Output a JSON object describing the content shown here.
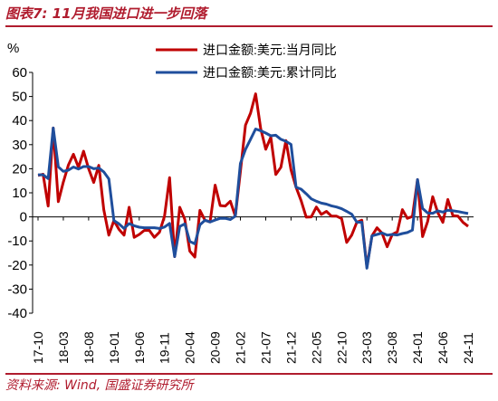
{
  "header": {
    "title": "图表7:  11月我国进口进一步回落"
  },
  "footer": {
    "source": "资料来源:  Wind, 国盛证券研究所"
  },
  "chart_data": {
    "type": "line",
    "y_unit": "%",
    "ylim": [
      -40,
      60
    ],
    "yticks": [
      60,
      50,
      40,
      30,
      20,
      10,
      0,
      -10,
      -20,
      -30,
      -40
    ],
    "x_tick_labels": [
      "17-10",
      "18-03",
      "18-08",
      "19-01",
      "19-06",
      "19-11",
      "20-04",
      "20-09",
      "21-02",
      "21-07",
      "21-12",
      "22-05",
      "22-10",
      "23-03",
      "23-08",
      "24-01",
      "24-06",
      "24-11"
    ],
    "x": [
      "17-10",
      "17-11",
      "17-12",
      "18-01",
      "18-02",
      "18-03",
      "18-04",
      "18-05",
      "18-06",
      "18-07",
      "18-08",
      "18-09",
      "18-10",
      "18-11",
      "18-12",
      "19-01",
      "19-02",
      "19-03",
      "19-04",
      "19-05",
      "19-06",
      "19-07",
      "19-08",
      "19-09",
      "19-10",
      "19-11",
      "19-12",
      "20-01",
      "20-02",
      "20-03",
      "20-04",
      "20-05",
      "20-06",
      "20-07",
      "20-08",
      "20-09",
      "20-10",
      "20-11",
      "20-12",
      "21-01",
      "21-02",
      "21-03",
      "21-04",
      "21-05",
      "21-06",
      "21-07",
      "21-08",
      "21-09",
      "21-10",
      "21-11",
      "21-12",
      "22-01",
      "22-02",
      "22-03",
      "22-04",
      "22-05",
      "22-06",
      "22-07",
      "22-08",
      "22-09",
      "22-10",
      "22-11",
      "22-12",
      "23-01",
      "23-02",
      "23-03",
      "23-04",
      "23-05",
      "23-06",
      "23-07",
      "23-08",
      "23-09",
      "23-10",
      "23-11",
      "23-12",
      "24-01",
      "24-02",
      "24-03",
      "24-04",
      "24-05",
      "24-06",
      "24-07",
      "24-08",
      "24-09",
      "24-10",
      "24-11"
    ],
    "series": [
      {
        "name": "进口金额:美元:当月同比",
        "color": "#c00000",
        "values": [
          17.2,
          17.7,
          4.5,
          36.9,
          6.3,
          14.4,
          21.5,
          26.0,
          20.6,
          27.3,
          20.0,
          14.3,
          21.4,
          3.0,
          -7.6,
          -1.5,
          -5.2,
          -7.6,
          4.0,
          -8.5,
          -7.3,
          -5.6,
          -5.6,
          -8.5,
          -6.4,
          0.3,
          16.3,
          -16.5,
          4.0,
          -1.0,
          -14.2,
          -16.7,
          2.7,
          -1.4,
          -2.1,
          13.2,
          4.7,
          4.5,
          6.5,
          0.3,
          18.8,
          38.1,
          43.1,
          51.1,
          36.7,
          28.1,
          33.1,
          17.6,
          20.6,
          31.7,
          19.5,
          12.3,
          6.7,
          -0.1,
          0.0,
          4.1,
          1.0,
          2.3,
          0.3,
          0.3,
          -0.7,
          -10.6,
          -7.5,
          -2.2,
          -1.4,
          -20.8,
          -7.9,
          -4.5,
          -6.8,
          -12.4,
          -7.3,
          -6.2,
          3.0,
          -0.6,
          0.2,
          15.5,
          -8.2,
          -1.9,
          8.4,
          1.8,
          -2.3,
          7.2,
          0.5,
          0.3,
          -2.3,
          -3.9
        ]
      },
      {
        "name": "进口金额:美元:累计同比",
        "color": "#1f4e9c",
        "values": [
          17.5,
          17.5,
          15.9,
          36.9,
          20.8,
          18.9,
          19.4,
          20.7,
          19.9,
          20.9,
          20.9,
          20.0,
          20.3,
          18.7,
          15.8,
          -1.5,
          -2.9,
          -4.8,
          -2.8,
          -3.7,
          -4.3,
          -4.5,
          -4.5,
          -4.5,
          -4.8,
          -4.2,
          -2.7,
          -16.5,
          -4.0,
          -2.9,
          -10.2,
          -11.2,
          -3.3,
          -1.4,
          -2.1,
          -1.3,
          -0.6,
          -0.6,
          -1.1,
          0.3,
          22.2,
          28.0,
          32.2,
          36.5,
          35.8,
          34.8,
          33.7,
          33.9,
          32.2,
          31.4,
          30.1,
          12.3,
          11.5,
          9.6,
          7.5,
          6.5,
          5.7,
          5.3,
          4.6,
          4.1,
          3.4,
          2.3,
          1.1,
          -2.2,
          -2.2,
          -21.3,
          -7.9,
          -7.3,
          -6.7,
          -7.6,
          -7.3,
          -7.5,
          -6.9,
          -6.5,
          -5.5,
          15.5,
          3.5,
          1.6,
          1.5,
          2.5,
          2.0,
          2.8,
          2.5,
          2.2,
          1.8,
          1.4
        ]
      }
    ],
    "legend_position": "top"
  }
}
